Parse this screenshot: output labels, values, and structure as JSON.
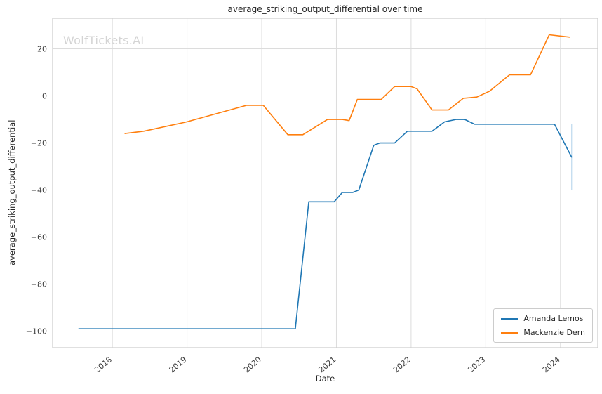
{
  "watermark": "WolfTickets.AI",
  "chart_data": {
    "type": "line",
    "title": "average_striking_output_differential over time",
    "xlabel": "Date",
    "ylabel": "average_striking_output_differential",
    "xlim": [
      2017.2,
      2024.5
    ],
    "ylim": [
      -107,
      33
    ],
    "grid": true,
    "legend_position": "lower right",
    "xticks": [
      {
        "v": 2018,
        "label": "2018"
      },
      {
        "v": 2019,
        "label": "2019"
      },
      {
        "v": 2020,
        "label": "2020"
      },
      {
        "v": 2021,
        "label": "2021"
      },
      {
        "v": 2022,
        "label": "2022"
      },
      {
        "v": 2023,
        "label": "2023"
      },
      {
        "v": 2024,
        "label": "2024"
      }
    ],
    "yticks": [
      {
        "v": 20,
        "label": "20"
      },
      {
        "v": 0,
        "label": "0"
      },
      {
        "v": -20,
        "label": "−20"
      },
      {
        "v": -40,
        "label": "−40"
      },
      {
        "v": -60,
        "label": "−60"
      },
      {
        "v": -80,
        "label": "−80"
      },
      {
        "v": -100,
        "label": "−100"
      }
    ],
    "series": [
      {
        "name": "Amanda Lemos",
        "color": "#1f77b4",
        "points": [
          [
            2017.55,
            -99
          ],
          [
            2020.45,
            -99
          ],
          [
            2020.63,
            -45
          ],
          [
            2020.97,
            -45
          ],
          [
            2021.08,
            -41
          ],
          [
            2021.22,
            -41
          ],
          [
            2021.3,
            -40
          ],
          [
            2021.5,
            -21
          ],
          [
            2021.58,
            -20
          ],
          [
            2021.78,
            -20
          ],
          [
            2021.95,
            -15
          ],
          [
            2022.28,
            -15
          ],
          [
            2022.45,
            -11
          ],
          [
            2022.6,
            -10
          ],
          [
            2022.72,
            -10
          ],
          [
            2022.85,
            -12
          ],
          [
            2023.3,
            -12
          ],
          [
            2023.92,
            -12
          ],
          [
            2024.15,
            -26
          ]
        ]
      },
      {
        "name": "Mackenzie Dern",
        "color": "#ff7f0e",
        "points": [
          [
            2018.17,
            -16
          ],
          [
            2018.42,
            -15
          ],
          [
            2019.0,
            -11
          ],
          [
            2019.8,
            -4
          ],
          [
            2020.02,
            -4
          ],
          [
            2020.35,
            -16.5
          ],
          [
            2020.55,
            -16.5
          ],
          [
            2020.88,
            -10
          ],
          [
            2021.08,
            -10
          ],
          [
            2021.17,
            -10.5
          ],
          [
            2021.28,
            -1.5
          ],
          [
            2021.6,
            -1.5
          ],
          [
            2021.78,
            4
          ],
          [
            2022.0,
            4
          ],
          [
            2022.08,
            3
          ],
          [
            2022.28,
            -6
          ],
          [
            2022.5,
            -6
          ],
          [
            2022.7,
            -1
          ],
          [
            2022.88,
            -0.5
          ],
          [
            2023.05,
            2
          ],
          [
            2023.32,
            9
          ],
          [
            2023.6,
            9
          ],
          [
            2023.85,
            26
          ],
          [
            2024.12,
            25
          ]
        ]
      }
    ],
    "annotation_vline": {
      "x": 2024.15,
      "y1": -12,
      "y2": -40,
      "color": "#bcd9ee"
    }
  }
}
